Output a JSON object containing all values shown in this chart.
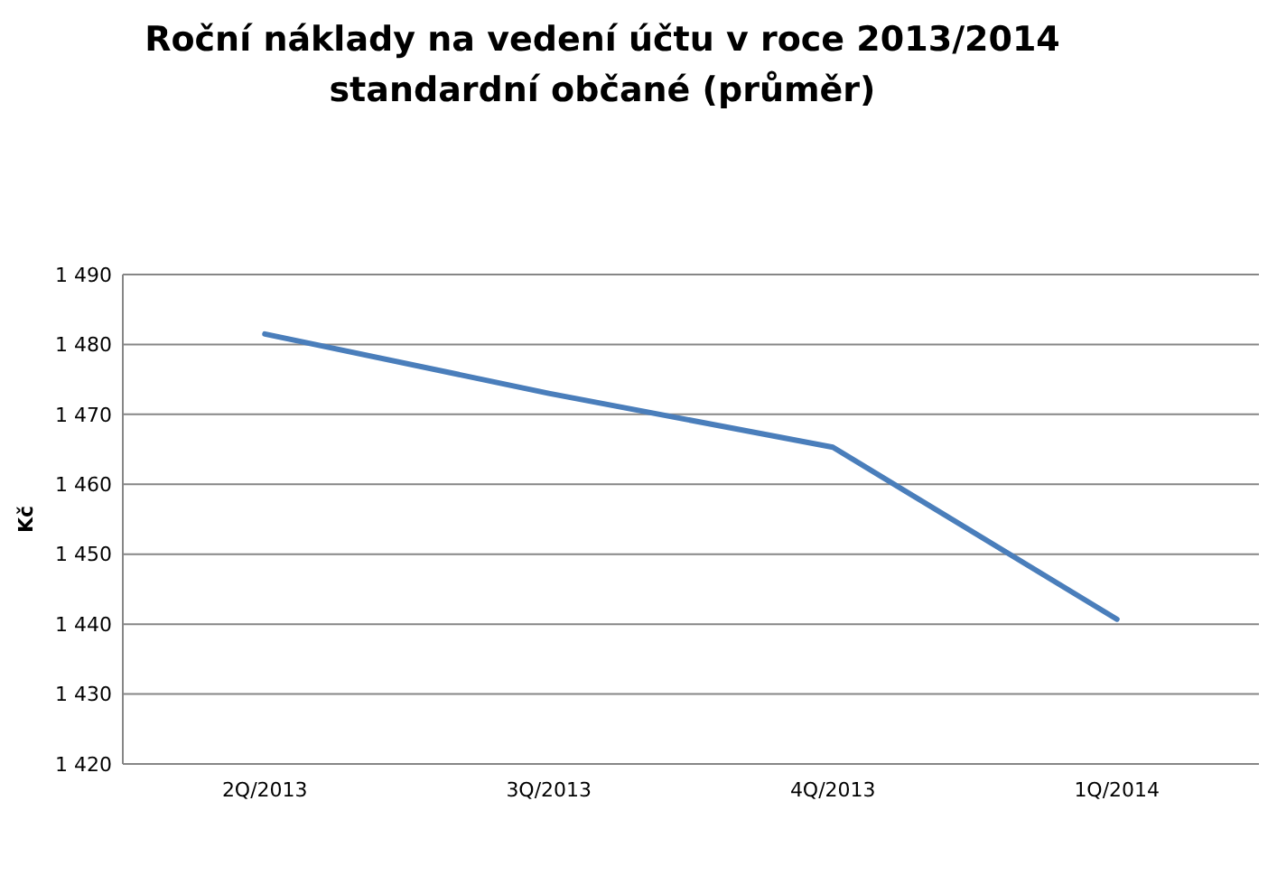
{
  "chart_data": {
    "type": "line",
    "title": "Roční náklady na vedení účtu v roce 2013/2014",
    "subtitle": "standardní občané (průměr)",
    "ylabel": "Kč",
    "categories": [
      "2Q/2013",
      "3Q/2013",
      "4Q/2013",
      "1Q/2014"
    ],
    "series": [
      {
        "color": "#4a7ebb",
        "values": [
          1481.5,
          1473,
          1465.3,
          1440.7
        ]
      }
    ],
    "ylim": [
      1420,
      1490
    ],
    "yticks": [
      {
        "value": 1420,
        "label": "1 420"
      },
      {
        "value": 1430,
        "label": "1 430"
      },
      {
        "value": 1440,
        "label": "1 440"
      },
      {
        "value": 1450,
        "label": "1 450"
      },
      {
        "value": 1460,
        "label": "1 460"
      },
      {
        "value": 1470,
        "label": "1 470"
      },
      {
        "value": 1480,
        "label": "1 480"
      },
      {
        "value": 1490,
        "label": "1 490"
      }
    ],
    "grid": "y",
    "marker": "none",
    "line_style": "solid"
  }
}
